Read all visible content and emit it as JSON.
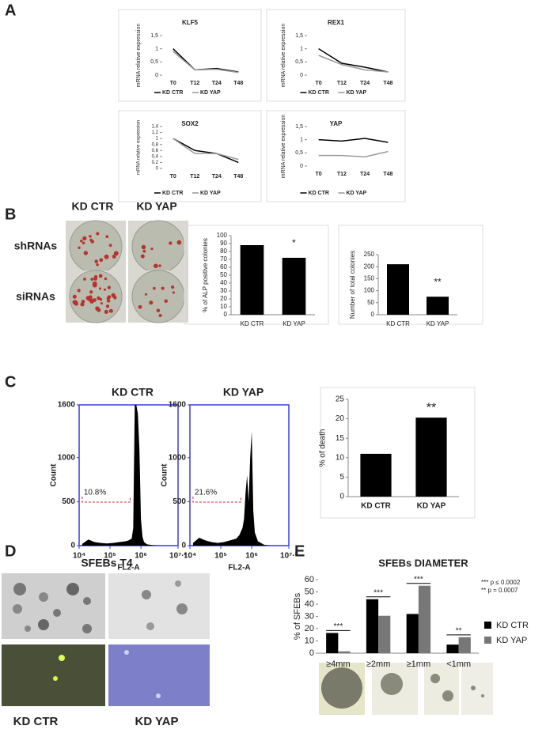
{
  "figure": {
    "panel_labels": [
      "A",
      "B",
      "C",
      "D",
      "E"
    ],
    "B_columns": [
      "KD CTR",
      "KD YAP"
    ],
    "B_rows": [
      "shRNAs",
      "siRNAs"
    ],
    "D_title": "SFEBs T4",
    "D_columns": [
      "KD CTR",
      "KD YAP"
    ]
  },
  "chart_data": [
    {
      "type": "line",
      "title": "KLF5",
      "y_label": "mRNA relative expression",
      "categories": [
        "T0",
        "T12",
        "T24",
        "T48"
      ],
      "series": [
        {
          "name": "KD CTR",
          "color": "#000000",
          "values": [
            1.0,
            0.2,
            0.25,
            0.12
          ]
        },
        {
          "name": "KD YAP",
          "color": "#999999",
          "values": [
            0.9,
            0.2,
            0.22,
            0.1
          ]
        }
      ],
      "ylim": [
        0,
        1.5
      ],
      "yticks": [
        0,
        {
          "value": 0.5,
          "label": "0,5"
        },
        1,
        {
          "value": 1.5,
          "label": "1,5"
        }
      ]
    },
    {
      "type": "line",
      "title": "REX1",
      "y_label": "mRNA relative expression",
      "categories": [
        "T0",
        "T12",
        "T24",
        "T48"
      ],
      "series": [
        {
          "name": "KD CTR",
          "color": "#000000",
          "values": [
            1.0,
            0.45,
            0.3,
            0.12
          ]
        },
        {
          "name": "KD YAP",
          "color": "#999999",
          "values": [
            0.75,
            0.4,
            0.2,
            0.12
          ]
        }
      ],
      "ylim": [
        0,
        1.5
      ],
      "yticks": [
        0,
        {
          "value": 0.5,
          "label": "0,5"
        },
        1,
        {
          "value": 1.5,
          "label": "1,5"
        }
      ]
    },
    {
      "type": "line",
      "title": "SOX2",
      "y_label": "mRNA relative expression",
      "categories": [
        "T0",
        "T12",
        "T24",
        "T48"
      ],
      "series": [
        {
          "name": "KD CTR",
          "color": "#000000",
          "values": [
            1.0,
            0.6,
            0.5,
            0.2
          ]
        },
        {
          "name": "KD YAP",
          "color": "#999999",
          "values": [
            1.0,
            0.5,
            0.5,
            0.3
          ]
        }
      ],
      "ylim": [
        0,
        1.4
      ],
      "yticks": [
        0,
        {
          "value": 0.2,
          "label": "0,2"
        },
        {
          "value": 0.4,
          "label": "0,4"
        },
        {
          "value": 0.6,
          "label": "0,6"
        },
        {
          "value": 0.8,
          "label": "0,8"
        },
        1,
        {
          "value": 1.2,
          "label": "1,2"
        },
        {
          "value": 1.4,
          "label": "1,4"
        }
      ]
    },
    {
      "type": "line",
      "title": "YAP",
      "y_label": "mRNA relative expression",
      "categories": [
        "T0",
        "T12",
        "T24",
        "T48"
      ],
      "series": [
        {
          "name": "KD CTR",
          "color": "#000000",
          "values": [
            1.0,
            0.95,
            1.05,
            0.9
          ]
        },
        {
          "name": "KD YAP",
          "color": "#999999",
          "values": [
            0.4,
            0.4,
            0.35,
            0.55
          ]
        }
      ],
      "ylim": [
        0,
        1.5
      ],
      "yticks": [
        0,
        {
          "value": 0.5,
          "label": "0,5"
        },
        1,
        {
          "value": 1.5,
          "label": "1,5"
        }
      ]
    },
    {
      "type": "bar",
      "y_label": "% of ALP positive colonies",
      "categories": [
        "KD CTR",
        "KD YAP"
      ],
      "values": [
        88,
        72
      ],
      "color": "#000000",
      "annotation": "*",
      "ylim": [
        0,
        100
      ],
      "yticks": [
        0,
        10,
        20,
        30,
        40,
        50,
        60,
        70,
        80,
        90,
        100
      ]
    },
    {
      "type": "bar",
      "y_label": "Number of total colonies",
      "categories": [
        "KD CTR",
        "KD YAP"
      ],
      "values": [
        210,
        75
      ],
      "color": "#000000",
      "annotation": "**",
      "ylim": [
        0,
        250
      ],
      "yticks": [
        0,
        50,
        100,
        150,
        200,
        250
      ]
    },
    {
      "type": "area",
      "title": "KD CTR",
      "x_label": "FL2-A",
      "y_label": "Count",
      "gate": "10.8%",
      "color": "#000000",
      "x": [
        4.1,
        4.3,
        4.5,
        4.7,
        4.9,
        5.1,
        5.3,
        5.5,
        5.6,
        5.7,
        5.75,
        5.8,
        5.85,
        5.9,
        5.95,
        6.0,
        6.05,
        6.1,
        6.2,
        6.4,
        6.6
      ],
      "values": [
        20,
        70,
        40,
        30,
        25,
        30,
        40,
        50,
        60,
        80,
        200,
        1600,
        1600,
        1500,
        1100,
        300,
        100,
        40,
        15,
        5,
        0
      ],
      "xlim": [
        4,
        7.2
      ],
      "xticks": [
        {
          "value": 4,
          "label": "10⁴"
        },
        {
          "value": 5,
          "label": "10⁵"
        },
        {
          "value": 6,
          "label": "10⁶"
        },
        {
          "value": 7.2,
          "label": "10⁷·²"
        }
      ],
      "ylim": [
        0,
        1600
      ],
      "yticks": [
        0,
        500,
        1000,
        1600
      ]
    },
    {
      "type": "area",
      "title": "KD YAP",
      "x_label": "FL2-A",
      "y_label": "Count",
      "gate": "21.6%",
      "color": "#000000",
      "x": [
        4.1,
        4.3,
        4.5,
        4.7,
        4.9,
        5.1,
        5.3,
        5.5,
        5.6,
        5.7,
        5.75,
        5.8,
        5.85,
        5.9,
        5.95,
        6.0,
        6.05,
        6.1,
        6.2,
        6.4,
        6.6
      ],
      "values": [
        30,
        90,
        60,
        40,
        30,
        40,
        60,
        80,
        120,
        200,
        300,
        600,
        800,
        500,
        1000,
        1300,
        400,
        150,
        50,
        10,
        0
      ],
      "xlim": [
        4,
        7.2
      ],
      "xticks": [
        {
          "value": 4,
          "label": "10⁴"
        },
        {
          "value": 5,
          "label": "10⁵"
        },
        {
          "value": 6,
          "label": "10⁶"
        },
        {
          "value": 7.2,
          "label": "10⁷·²"
        }
      ],
      "ylim": [
        0,
        1600
      ],
      "yticks": [
        0,
        500,
        1000,
        1600
      ]
    },
    {
      "type": "bar",
      "y_label": "% of death",
      "categories": [
        "KD CTR",
        "KD YAP"
      ],
      "values": [
        11,
        20.3
      ],
      "color": "#000000",
      "annotation": "**",
      "ylim": [
        0,
        25
      ],
      "yticks": [
        0,
        5,
        10,
        15,
        20,
        25
      ]
    },
    {
      "type": "bar",
      "title": "SFEBs DIAMETER",
      "y_label": "% of SFEBs",
      "categories": [
        "≥4mm",
        "≥2mm",
        "≥1mm",
        "<1mm"
      ],
      "series": [
        {
          "name": "KD CTR",
          "color": "#000000",
          "values": [
            16.5,
            44,
            32,
            7
          ]
        },
        {
          "name": "KD YAP",
          "color": "#777777",
          "values": [
            1.5,
            30.5,
            55,
            13
          ]
        }
      ],
      "significance": [
        "***",
        "***",
        "***",
        "**"
      ],
      "notes": [
        "*** p ≤ 0.0002",
        "** p = 0.0007"
      ],
      "ylim": [
        0,
        60
      ],
      "yticks": [
        0,
        10,
        20,
        30,
        40,
        50,
        60
      ]
    }
  ]
}
